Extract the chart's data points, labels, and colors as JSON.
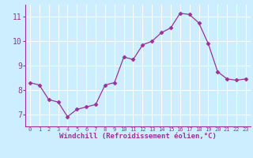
{
  "x": [
    0,
    1,
    2,
    3,
    4,
    5,
    6,
    7,
    8,
    9,
    10,
    11,
    12,
    13,
    14,
    15,
    16,
    17,
    18,
    19,
    20,
    21,
    22,
    23
  ],
  "y": [
    8.3,
    8.2,
    7.6,
    7.5,
    6.9,
    7.2,
    7.3,
    7.4,
    8.2,
    8.3,
    9.35,
    9.25,
    9.85,
    10.0,
    10.35,
    10.55,
    11.15,
    11.1,
    10.75,
    9.9,
    8.75,
    8.45,
    8.4,
    8.45
  ],
  "line_color": "#993399",
  "marker": "D",
  "marker_size": 2.5,
  "bg_color": "#cceeff",
  "grid_color": "#ffffff",
  "xlabel": "Windchill (Refroidissement éolien,°C)",
  "xlabel_color": "#993399",
  "tick_color": "#993399",
  "spine_color": "#993399",
  "ylim": [
    6.5,
    11.5
  ],
  "xlim": [
    -0.5,
    23.5
  ],
  "xticks": [
    0,
    1,
    2,
    3,
    4,
    5,
    6,
    7,
    8,
    9,
    10,
    11,
    12,
    13,
    14,
    15,
    16,
    17,
    18,
    19,
    20,
    21,
    22,
    23
  ],
  "yticks": [
    7,
    8,
    9,
    10,
    11
  ],
  "figsize": [
    3.2,
    2.0
  ],
  "dpi": 100
}
